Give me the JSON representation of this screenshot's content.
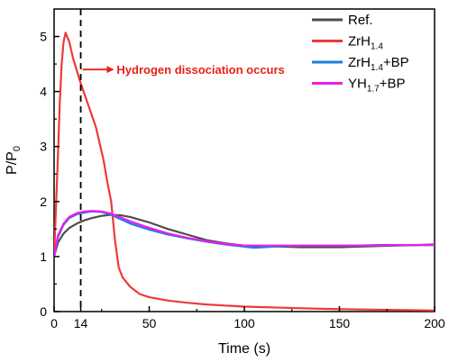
{
  "chart_data": {
    "type": "line",
    "xlabel": "Time (s)",
    "ylabel": {
      "main": "P/P",
      "sub": "0"
    },
    "xlim": [
      0,
      200
    ],
    "ylim": [
      0,
      5.5
    ],
    "x_ticks": [
      0,
      14,
      50,
      100,
      150,
      200
    ],
    "y_ticks": [
      0,
      1,
      2,
      3,
      4,
      5
    ],
    "grid": false,
    "legend_position": "top-right",
    "reference_line": {
      "x": 14,
      "style": "dashed",
      "color": "#000000"
    },
    "annotation": {
      "text": "Hydrogen dissociation occurs",
      "color": "#e8201a",
      "arrow_from": [
        15,
        4.4
      ],
      "arrow_to": [
        31,
        4.4
      ]
    },
    "series": [
      {
        "name": "Ref.",
        "legend": {
          "main": "Ref.",
          "sub": "",
          "suffix": ""
        },
        "color": "#4d4d4d",
        "x": [
          0,
          2,
          5,
          8,
          12,
          16,
          20,
          25,
          30,
          35,
          40,
          50,
          60,
          70,
          80,
          90,
          100,
          110,
          120,
          130,
          140,
          150,
          160,
          170,
          180,
          190,
          200
        ],
        "y": [
          1.0,
          1.25,
          1.42,
          1.52,
          1.6,
          1.66,
          1.7,
          1.74,
          1.76,
          1.75,
          1.72,
          1.62,
          1.5,
          1.4,
          1.3,
          1.24,
          1.2,
          1.19,
          1.18,
          1.17,
          1.17,
          1.17,
          1.18,
          1.19,
          1.2,
          1.21,
          1.22
        ]
      },
      {
        "name": "ZrH1.4",
        "legend": {
          "main": "ZrH",
          "sub": "1.4",
          "suffix": ""
        },
        "color": "#f0393a",
        "x": [
          0,
          2,
          3,
          4,
          5,
          6,
          8,
          10,
          14,
          18,
          22,
          26,
          28,
          30,
          32,
          34,
          36,
          40,
          45,
          50,
          60,
          70,
          80,
          90,
          100,
          120,
          140,
          160,
          180,
          200
        ],
        "y": [
          1.0,
          2.8,
          3.8,
          4.5,
          4.9,
          5.07,
          4.9,
          4.6,
          4.15,
          3.75,
          3.35,
          2.75,
          2.35,
          2.0,
          1.3,
          0.8,
          0.62,
          0.45,
          0.32,
          0.26,
          0.2,
          0.16,
          0.13,
          0.11,
          0.09,
          0.07,
          0.05,
          0.04,
          0.03,
          0.02
        ]
      },
      {
        "name": "ZrH1.4+BP",
        "legend": {
          "main": "ZrH",
          "sub": "1.4",
          "suffix": "+BP"
        },
        "color": "#1c7fe0",
        "x": [
          0,
          2,
          5,
          8,
          12,
          16,
          20,
          25,
          30,
          35,
          40,
          50,
          60,
          70,
          80,
          90,
          100,
          105,
          110,
          120,
          130,
          140,
          150,
          160,
          170,
          180,
          190,
          200
        ],
        "y": [
          1.0,
          1.35,
          1.58,
          1.7,
          1.77,
          1.8,
          1.82,
          1.81,
          1.76,
          1.68,
          1.6,
          1.49,
          1.4,
          1.33,
          1.27,
          1.22,
          1.18,
          1.16,
          1.17,
          1.19,
          1.2,
          1.2,
          1.2,
          1.2,
          1.21,
          1.21,
          1.21,
          1.21
        ]
      },
      {
        "name": "YH1.7+BP",
        "legend": {
          "main": "YH",
          "sub": "1.7",
          "suffix": "+BP"
        },
        "color": "#ee1bee",
        "x": [
          0,
          2,
          5,
          8,
          12,
          16,
          20,
          25,
          30,
          35,
          40,
          50,
          60,
          70,
          80,
          90,
          100,
          110,
          120,
          130,
          140,
          150,
          160,
          170,
          180,
          190,
          200
        ],
        "y": [
          1.0,
          1.38,
          1.6,
          1.72,
          1.79,
          1.82,
          1.83,
          1.82,
          1.78,
          1.71,
          1.64,
          1.52,
          1.42,
          1.34,
          1.28,
          1.23,
          1.2,
          1.2,
          1.2,
          1.2,
          1.2,
          1.2,
          1.2,
          1.2,
          1.21,
          1.21,
          1.21
        ]
      }
    ]
  }
}
